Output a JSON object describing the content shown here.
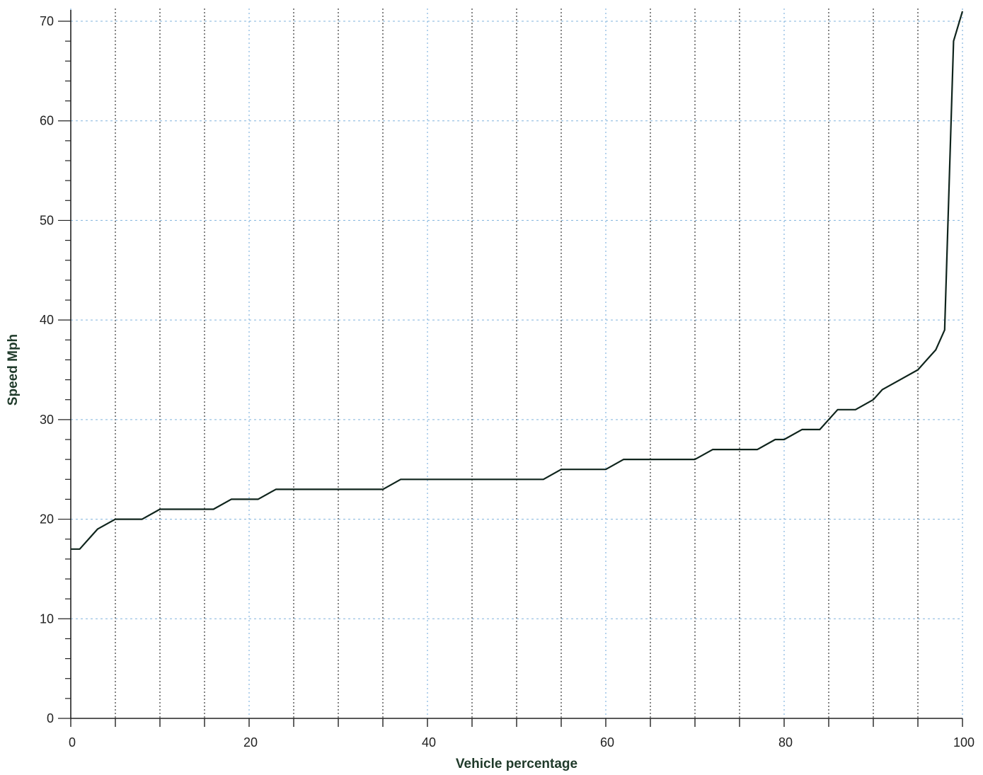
{
  "chart_data": {
    "type": "line",
    "title": "",
    "xlabel": "Vehicle percentage",
    "ylabel": "Speed Mph",
    "xlim": [
      0,
      100
    ],
    "ylim": [
      0,
      70
    ],
    "x_ticks": [
      0,
      20,
      40,
      60,
      80,
      100
    ],
    "y_ticks": [
      0,
      10,
      20,
      30,
      40,
      50,
      60,
      70
    ],
    "grid": true,
    "legend": "none",
    "colors": {
      "line": "#0f241c",
      "grid_major": "#222222",
      "grid_minor": "#6aa6d8",
      "axis": "#222222"
    },
    "series": [
      {
        "x": [
          0,
          1,
          3,
          5,
          8,
          10,
          16,
          18,
          21,
          23,
          35,
          37,
          53,
          55,
          60,
          62,
          70,
          72,
          77,
          79,
          80,
          82,
          84,
          86,
          88,
          90,
          91,
          93,
          95,
          96,
          97,
          98,
          99,
          100
        ],
        "y": [
          17,
          17,
          19,
          20,
          20,
          21,
          21,
          22,
          22,
          23,
          23,
          24,
          24,
          25,
          25,
          26,
          26,
          27,
          27,
          28,
          28,
          29,
          29,
          31,
          31,
          32,
          33,
          34,
          35,
          36,
          37,
          39,
          68,
          71
        ]
      }
    ]
  }
}
